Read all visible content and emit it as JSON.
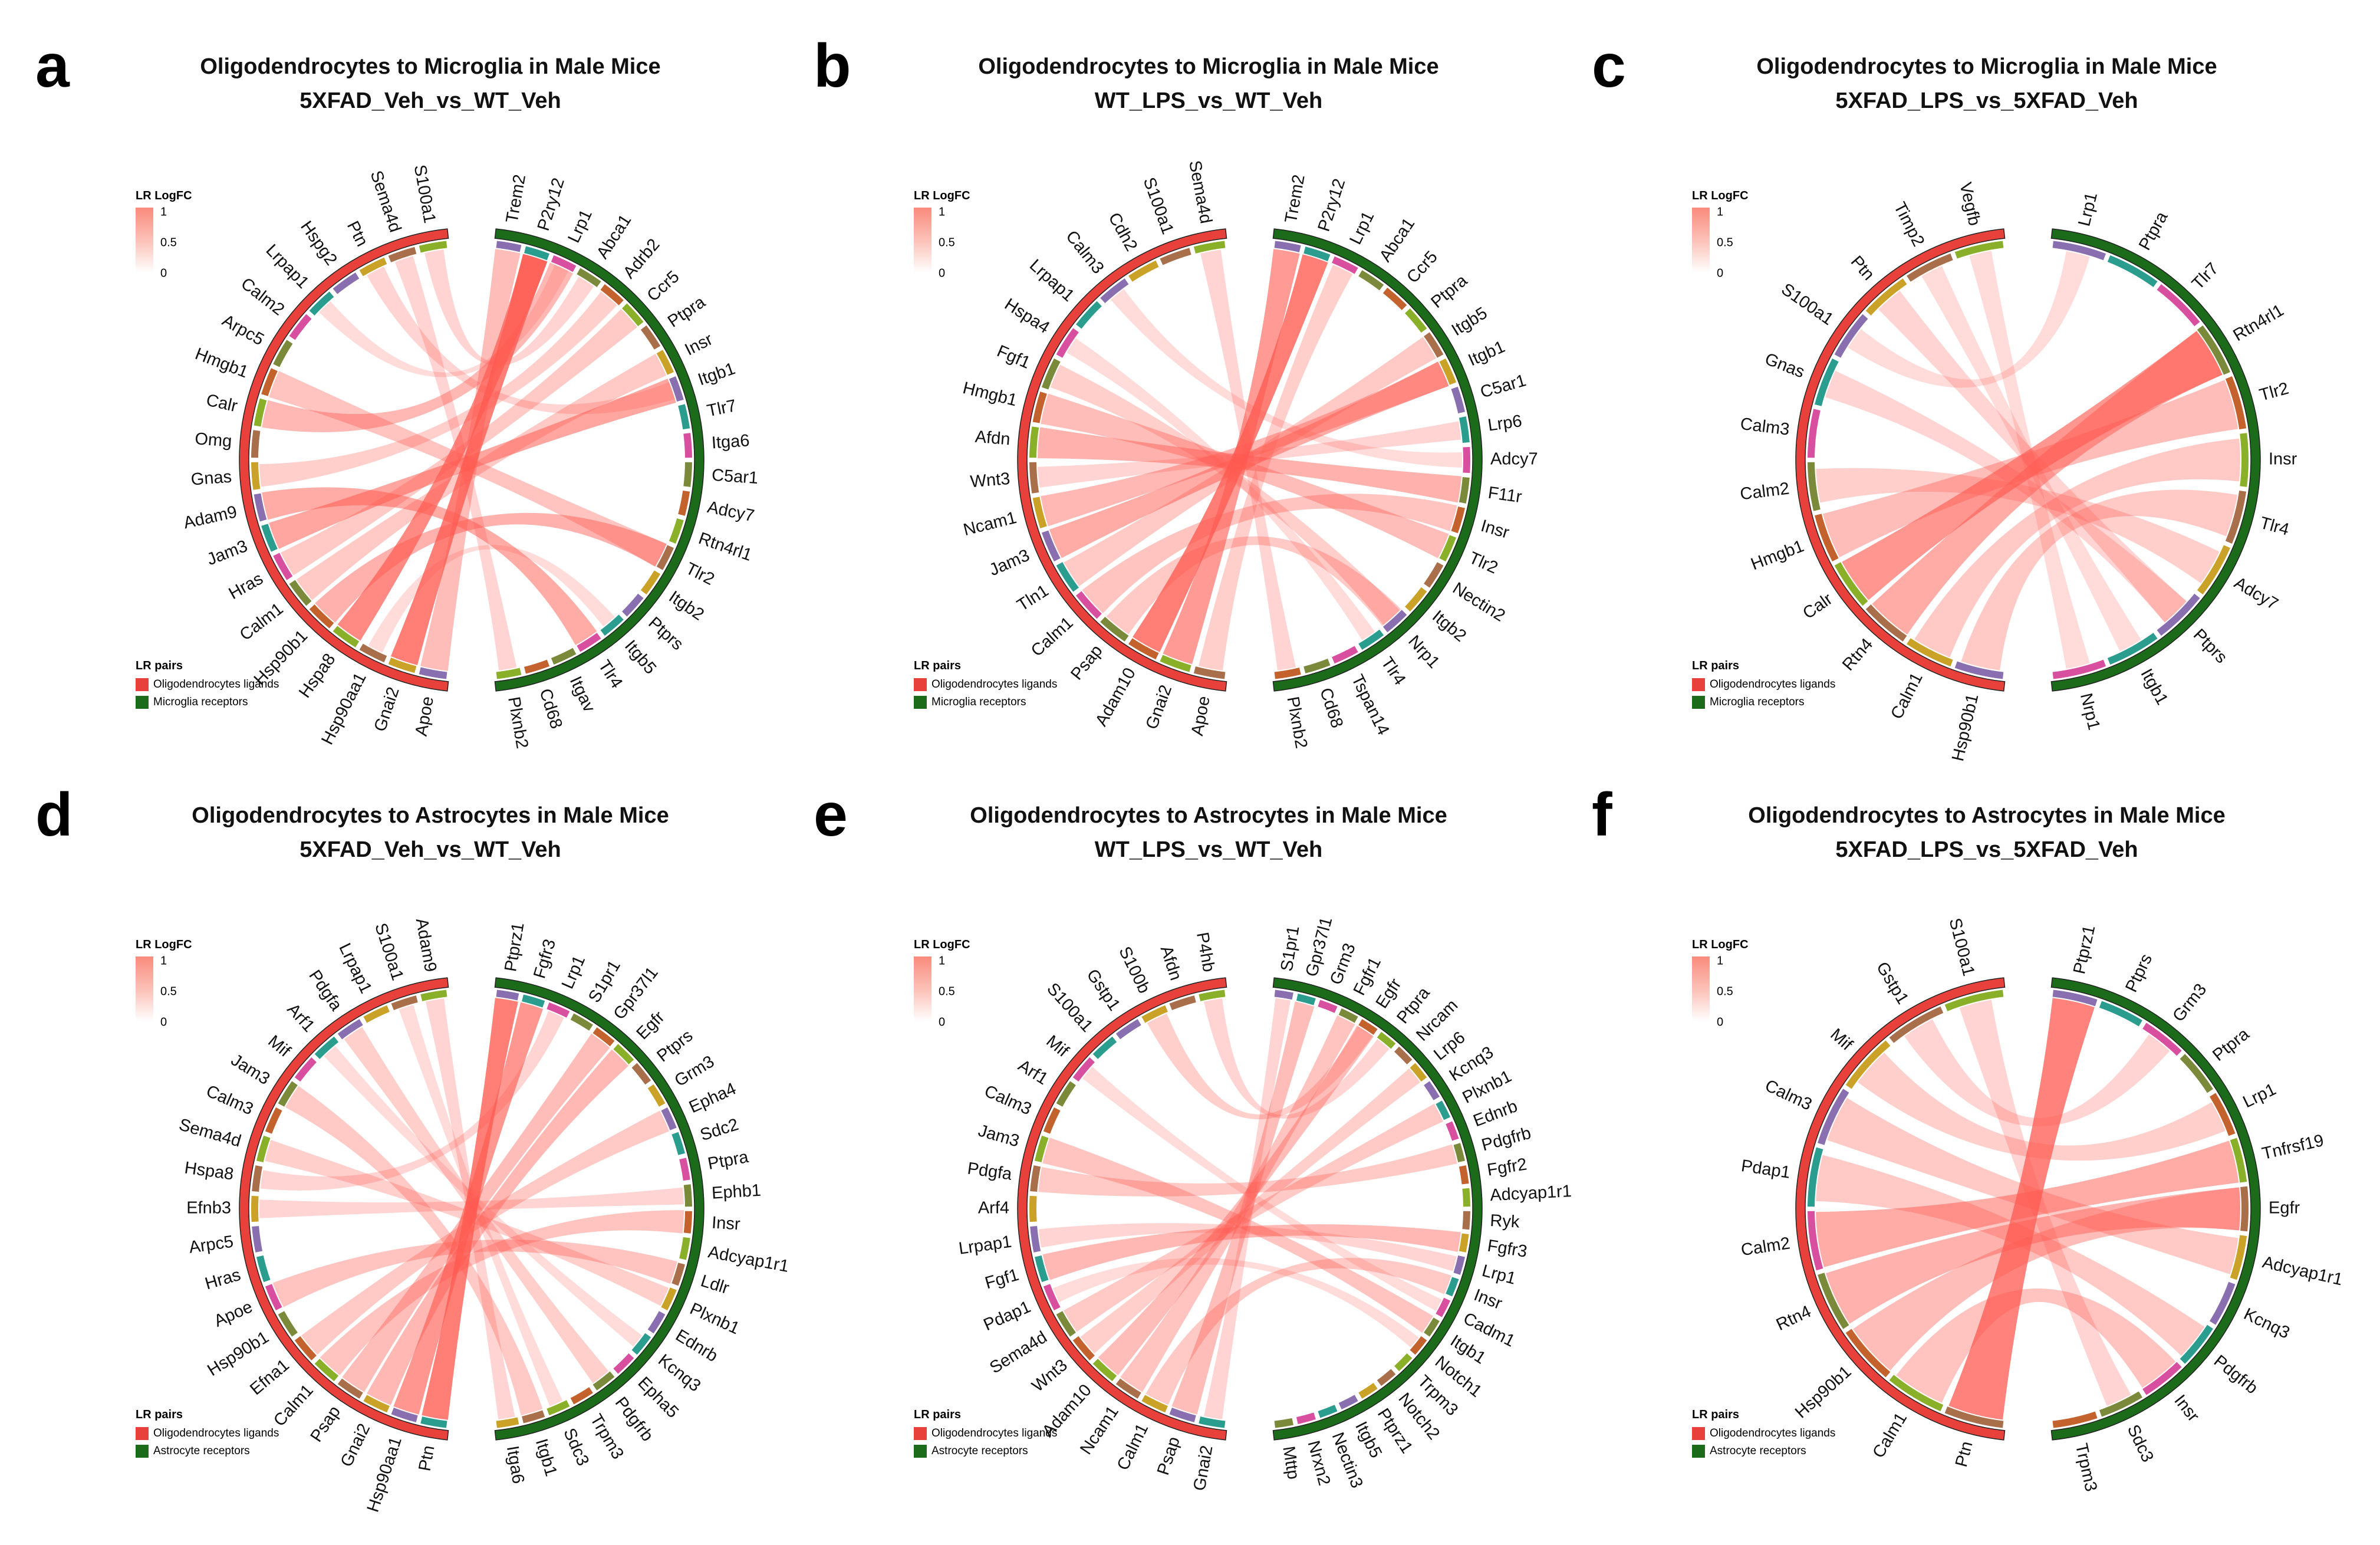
{
  "charts": [
    {
      "panel": "a",
      "title_line1": "Oligodendrocytes to Microglia in Male Mice",
      "title_line2": "5XFAD_Veh_vs_WT_Veh",
      "legend_color_title": "LR LogFC",
      "legend_color_ticks": [
        "1",
        "0.5",
        "0"
      ],
      "legend_pairs_title": "LR pairs",
      "legend_pairs": [
        "Oligodendrocytes ligands",
        "Microglia receptors"
      ],
      "ligands": [
        "S100a1",
        "Sema4d",
        "Ptn",
        "Hspg2",
        "Lrpap1",
        "Calm2",
        "Arpc5",
        "Hmgb1",
        "Calr",
        "Omg",
        "Gnas",
        "Adam9",
        "Jam3",
        "Hras",
        "Calm1",
        "Hsp90b1",
        "Hspa8",
        "Hsp90aa1",
        "Gnai2",
        "Apoe"
      ],
      "receptors": [
        "Trem2",
        "P2ry12",
        "Lrp1",
        "Abca1",
        "Adrb2",
        "Ccr5",
        "Ptpra",
        "Insr",
        "Itgb1",
        "Tlr7",
        "Itga6",
        "C5ar1",
        "Adcy7",
        "Rtn4rl1",
        "Tlr2",
        "Itgb2",
        "Ptprs",
        "Itgb5",
        "Tlr4",
        "Itgav",
        "Cd68",
        "Plxnb2"
      ]
    },
    {
      "panel": "b",
      "title_line1": "Oligodendrocytes to Microglia in Male Mice",
      "title_line2": "WT_LPS_vs_WT_Veh",
      "legend_color_title": "LR LogFC",
      "legend_color_ticks": [
        "1",
        "0.5",
        "0"
      ],
      "legend_pairs_title": "LR pairs",
      "legend_pairs": [
        "Oligodendrocytes ligands",
        "Microglia receptors"
      ],
      "ligands": [
        "Sema4d",
        "S100a1",
        "Cdh2",
        "Calm3",
        "Lrpap1",
        "Hspa4",
        "Fgf1",
        "Hmgb1",
        "Afdn",
        "Wnt3",
        "Ncam1",
        "Jam3",
        "Tln1",
        "Calm1",
        "Psap",
        "Adam10",
        "Gnai2",
        "Apoe"
      ],
      "receptors": [
        "Trem2",
        "P2ry12",
        "Lrp1",
        "Abca1",
        "Ccr5",
        "Ptpra",
        "Itgb5",
        "Itgb1",
        "C5ar1",
        "Lrp6",
        "Adcy7",
        "F11r",
        "Insr",
        "Tlr2",
        "Nectin2",
        "Itgb2",
        "Nrp1",
        "Tlr4",
        "Tspan14",
        "Cd68",
        "Plxnb2"
      ]
    },
    {
      "panel": "c",
      "title_line1": "Oligodendrocytes to Microglia in Male Mice",
      "title_line2": "5XFAD_LPS_vs_5XFAD_Veh",
      "legend_color_title": "LR LogFC",
      "legend_color_ticks": [
        "1",
        "0.5",
        "0"
      ],
      "legend_pairs_title": "LR pairs",
      "legend_pairs": [
        "Oligodendrocytes ligands",
        "Microglia receptors"
      ],
      "ligands": [
        "Vegfb",
        "Timp2",
        "Ptn",
        "S100a1",
        "Gnas",
        "Calm3",
        "Calm2",
        "Hmgb1",
        "Calr",
        "Rtn4",
        "Calm1",
        "Hsp90b1"
      ],
      "receptors": [
        "Lrp1",
        "Ptpra",
        "Tlr7",
        "Rtn4rl1",
        "Tlr2",
        "Insr",
        "Tlr4",
        "Adcy7",
        "Ptprs",
        "Itgb1",
        "Nrp1"
      ]
    },
    {
      "panel": "d",
      "title_line1": "Oligodendrocytes to Astrocytes in Male Mice",
      "title_line2": "5XFAD_Veh_vs_WT_Veh",
      "legend_color_title": "LR LogFC",
      "legend_color_ticks": [
        "1",
        "0.5",
        "0"
      ],
      "legend_pairs_title": "LR pairs",
      "legend_pairs": [
        "Oligodendrocytes ligands",
        "Astrocyte receptors"
      ],
      "ligands": [
        "Adam9",
        "S100a1",
        "Lrpap1",
        "Pdgfa",
        "Arf1",
        "Mif",
        "Jam3",
        "Calm3",
        "Sema4d",
        "Hspa8",
        "Efnb3",
        "Arpc5",
        "Hras",
        "Apoe",
        "Hsp90b1",
        "Efna1",
        "Calm1",
        "Psap",
        "Gnai2",
        "Hsp90aa1",
        "Ptn"
      ],
      "receptors": [
        "Ptprz1",
        "Fgfr3",
        "Lrp1",
        "S1pr1",
        "Gpr37l1",
        "Egfr",
        "Ptprs",
        "Grm3",
        "Epha4",
        "Sdc2",
        "Ptpra",
        "Ephb1",
        "Insr",
        "Adcyap1r1",
        "Ldlr",
        "Plxnb1",
        "Ednrb",
        "Kcnq3",
        "Epha5",
        "Pdgfrb",
        "Trpm3",
        "Sdc3",
        "Itgb1",
        "Itga6"
      ]
    },
    {
      "panel": "e",
      "title_line1": "Oligodendrocytes to Astrocytes in Male Mice",
      "title_line2": "WT_LPS_vs_WT_Veh",
      "legend_color_title": "LR LogFC",
      "legend_color_ticks": [
        "1",
        "0.5",
        "0"
      ],
      "legend_pairs_title": "LR pairs",
      "legend_pairs": [
        "Oligodendrocytes ligands",
        "Astrocyte receptors"
      ],
      "ligands": [
        "P4hb",
        "Afdn",
        "S100b",
        "Gstp1",
        "S100a1",
        "Mif",
        "Arf1",
        "Calm3",
        "Jam3",
        "Pdgfa",
        "Arf4",
        "Lrpap1",
        "Fgf1",
        "Pdap1",
        "Sema4d",
        "Wnt3",
        "Adam10",
        "Ncam1",
        "Calm1",
        "Psap",
        "Gnai2"
      ],
      "receptors": [
        "S1pr1",
        "Gpr37l1",
        "Grm3",
        "Fgfr1",
        "Egfr",
        "Ptpra",
        "Nrcam",
        "Lrp6",
        "Kcnq3",
        "Plxnb1",
        "Ednrb",
        "Pdgfrb",
        "Fgfr2",
        "Adcyap1r1",
        "Ryk",
        "Fgfr3",
        "Lrp1",
        "Insr",
        "Cadm1",
        "Itgb1",
        "Notch1",
        "Trpm3",
        "Notch2",
        "Ptprz1",
        "Itgb5",
        "Nectin3",
        "Nrxn2",
        "Mttp"
      ]
    },
    {
      "panel": "f",
      "title_line1": "Oligodendrocytes to Astrocytes in Male Mice",
      "title_line2": "5XFAD_LPS_vs_5XFAD_Veh",
      "legend_color_title": "LR LogFC",
      "legend_color_ticks": [
        "1",
        "0.5",
        "0"
      ],
      "legend_pairs_title": "LR pairs",
      "legend_pairs": [
        "Oligodendrocytes ligands",
        "Astrocyte receptors"
      ],
      "ligands": [
        "S100a1",
        "Gstp1",
        "Mif",
        "Calm3",
        "Pdap1",
        "Calm2",
        "Rtn4",
        "Hsp90b1",
        "Calm1",
        "Ptn"
      ],
      "receptors": [
        "Ptprz1",
        "Ptprs",
        "Grm3",
        "Ptpra",
        "Lrp1",
        "Tnfrsf19",
        "Egfr",
        "Adcyap1r1",
        "Kcnq3",
        "Pdgfrb",
        "Insr",
        "Sdc3",
        "Trpm3"
      ]
    }
  ],
  "colors": {
    "ligand_band": "#e8413c",
    "receptor_band": "#1b6b1b",
    "chord": "#ff5a50",
    "inner_track": [
      "#8ab02a",
      "#a96e4a",
      "#c9a227",
      "#8a6fb0",
      "#2a9d8f",
      "#d94fa0",
      "#7a8a3a",
      "#c4622d"
    ]
  },
  "chart_data": [
    {
      "panel": "a",
      "type": "chord",
      "title": "Oligodendrocytes to Microglia in Male Mice",
      "subtitle": "5XFAD_Veh_vs_WT_Veh",
      "color_scale": {
        "name": "LR LogFC",
        "range": [
          0,
          1
        ]
      },
      "links": [
        [
          "Gnai2",
          "P2ry12",
          0.95
        ],
        [
          "Hspa8",
          "P2ry12",
          0.85
        ],
        [
          "Jam3",
          "Itgb1",
          0.6
        ],
        [
          "Adam9",
          "Tlr4",
          0.55
        ],
        [
          "Hsp90b1",
          "Tlr2",
          0.5
        ],
        [
          "Calr",
          "Lrp1",
          0.45
        ],
        [
          "Apoe",
          "Trem2",
          0.4
        ],
        [
          "Hmgb1",
          "Tlr2",
          0.35
        ],
        [
          "Calm1",
          "Insr",
          0.3
        ],
        [
          "Hras",
          "Ccr5",
          0.3
        ],
        [
          "Gnas",
          "Adrb2",
          0.25
        ],
        [
          "Ptn",
          "Itgb1",
          0.2
        ],
        [
          "S100a1",
          "Abca1",
          0.2
        ],
        [
          "Sema4d",
          "Plxnb2",
          0.2
        ],
        [
          "Hsp90aa1",
          "Itgb5",
          0.15
        ],
        [
          "Lrpap1",
          "Lrp1",
          0.15
        ]
      ]
    },
    {
      "panel": "b",
      "type": "chord",
      "title": "Oligodendrocytes to Microglia in Male Mice",
      "subtitle": "WT_LPS_vs_WT_Veh",
      "color_scale": {
        "name": "LR LogFC",
        "range": [
          0,
          1
        ]
      },
      "links": [
        [
          "Adam10",
          "P2ry12",
          0.95
        ],
        [
          "Gnai2",
          "Trem2",
          0.7
        ],
        [
          "Jam3",
          "Itgb1",
          0.55
        ],
        [
          "Afdn",
          "F11r",
          0.5
        ],
        [
          "Ncam1",
          "Itgb1",
          0.45
        ],
        [
          "Hmgb1",
          "Tlr2",
          0.4
        ],
        [
          "Calm1",
          "Insr",
          0.35
        ],
        [
          "Psap",
          "Nrp1",
          0.3
        ],
        [
          "Tln1",
          "Itgb5",
          0.3
        ],
        [
          "Fgf1",
          "Nrp1",
          0.25
        ],
        [
          "Apoe",
          "Lrp1",
          0.25
        ],
        [
          "Wnt3",
          "Lrp6",
          0.2
        ],
        [
          "Sema4d",
          "Plxnb2",
          0.2
        ],
        [
          "Hspa4",
          "Tlr4",
          0.15
        ],
        [
          "Calm3",
          "Adcy7",
          0.15
        ]
      ]
    },
    {
      "panel": "c",
      "type": "chord",
      "title": "Oligodendrocytes to Microglia in Male Mice",
      "subtitle": "5XFAD_LPS_vs_5XFAD_Veh",
      "color_scale": {
        "name": "LR LogFC",
        "range": [
          0,
          1
        ]
      },
      "links": [
        [
          "Calr",
          "Rtn4rl1",
          0.75
        ],
        [
          "Rtn4",
          "Rtn4rl1",
          0.55
        ],
        [
          "Hmgb1",
          "Tlr2",
          0.4
        ],
        [
          "Hsp90b1",
          "Tlr4",
          0.3
        ],
        [
          "Calm1",
          "Insr",
          0.3
        ],
        [
          "Calm2",
          "Adcy7",
          0.25
        ],
        [
          "Gnas",
          "Ptprs",
          0.2
        ],
        [
          "Ptn",
          "Ptprs",
          0.2
        ],
        [
          "Vegfb",
          "Nrp1",
          0.15
        ],
        [
          "Timp2",
          "Itgb1",
          0.15
        ],
        [
          "S100a1",
          "Lrp1",
          0.15
        ]
      ]
    },
    {
      "panel": "d",
      "type": "chord",
      "title": "Oligodendrocytes to Astrocytes in Male Mice",
      "subtitle": "5XFAD_Veh_vs_WT_Veh",
      "color_scale": {
        "name": "LR LogFC",
        "range": [
          0,
          1
        ]
      },
      "links": [
        [
          "Ptn",
          "Ptprz1",
          0.95
        ],
        [
          "Hsp90aa1",
          "Fgfr3",
          0.75
        ],
        [
          "Gnai2",
          "Egfr",
          0.45
        ],
        [
          "Psap",
          "Gpr37l1",
          0.4
        ],
        [
          "Calm1",
          "Insr",
          0.35
        ],
        [
          "Apoe",
          "Ldlr",
          0.35
        ],
        [
          "Efna1",
          "Epha4",
          0.3
        ],
        [
          "Jam3",
          "Itgb1",
          0.3
        ],
        [
          "Pdgfa",
          "Pdgfrb",
          0.25
        ],
        [
          "Sema4d",
          "Plxnb1",
          0.25
        ],
        [
          "Adam9",
          "Itga6",
          0.2
        ],
        [
          "Efnb3",
          "Ephb1",
          0.2
        ],
        [
          "Hspa8",
          "Lrp1",
          0.2
        ],
        [
          "Arf1",
          "Kcnq3",
          0.15
        ],
        [
          "S100a1",
          "Sdc3",
          0.15
        ]
      ]
    },
    {
      "panel": "e",
      "type": "chord",
      "title": "Oligodendrocytes to Astrocytes in Male Mice",
      "subtitle": "WT_LPS_vs_WT_Veh",
      "color_scale": {
        "name": "LR LogFC",
        "range": [
          0,
          1
        ]
      },
      "links": [
        [
          "Fgf1",
          "Fgfr3",
          0.45
        ],
        [
          "Adam10",
          "Egfr",
          0.4
        ],
        [
          "Psap",
          "Gpr37l1",
          0.4
        ],
        [
          "Ncam1",
          "Fgfr1",
          0.35
        ],
        [
          "Jam3",
          "Itgb1",
          0.35
        ],
        [
          "Sema4d",
          "Plxnb1",
          0.3
        ],
        [
          "Pdgfa",
          "Pdgfrb",
          0.3
        ],
        [
          "Calm1",
          "Insr",
          0.3
        ],
        [
          "Wnt3",
          "Lrp6",
          0.25
        ],
        [
          "S100b",
          "Egfr",
          0.25
        ],
        [
          "Lrpap1",
          "Lrp1",
          0.2
        ],
        [
          "Gnai2",
          "S1pr1",
          0.2
        ],
        [
          "P4hb",
          "Ptpra",
          0.2
        ],
        [
          "Mif",
          "Cadm1",
          0.15
        ],
        [
          "Pdap1",
          "Notch1",
          0.15
        ]
      ]
    },
    {
      "panel": "f",
      "type": "chord",
      "title": "Oligodendrocytes to Astrocytes in Male Mice",
      "subtitle": "5XFAD_LPS_vs_5XFAD_Veh",
      "color_scale": {
        "name": "LR LogFC",
        "range": [
          0,
          1
        ]
      },
      "links": [
        [
          "Ptn",
          "Ptprz1",
          0.9
        ],
        [
          "Calm2",
          "Tnfrsf19",
          0.55
        ],
        [
          "Rtn4",
          "Egfr",
          0.5
        ],
        [
          "Hsp90b1",
          "Egfr",
          0.4
        ],
        [
          "Calm1",
          "Insr",
          0.35
        ],
        [
          "Calm3",
          "Adcyap1r1",
          0.3
        ],
        [
          "Pdap1",
          "Pdgfrb",
          0.3
        ],
        [
          "Mif",
          "Lrp1",
          0.25
        ],
        [
          "Gstp1",
          "Grm3",
          0.2
        ],
        [
          "S100a1",
          "Sdc3",
          0.2
        ]
      ]
    }
  ]
}
